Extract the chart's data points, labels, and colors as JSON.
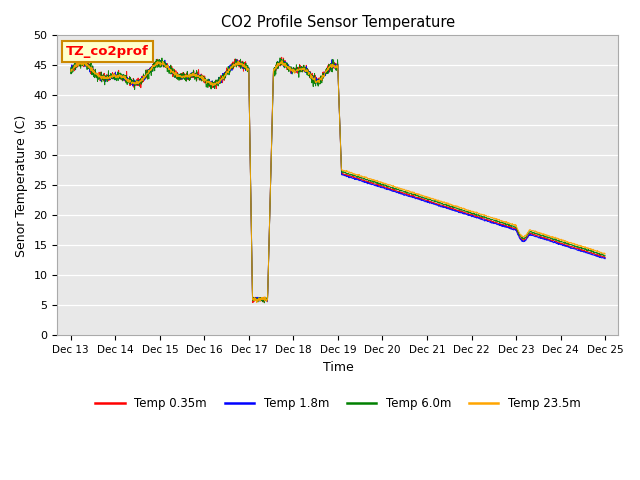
{
  "title": "CO2 Profile Sensor Temperature",
  "ylabel": "Senor Temperature (C)",
  "xlabel": "Time",
  "ylim": [
    0,
    50
  ],
  "yticks": [
    0,
    5,
    10,
    15,
    20,
    25,
    30,
    35,
    40,
    45,
    50
  ],
  "annotation_text": "TZ_co2prof",
  "annotation_box_color": "#ffffcc",
  "annotation_box_edge": "#cc8800",
  "bg_color": "#e8e8e8",
  "series_colors": [
    "red",
    "blue",
    "green",
    "orange"
  ],
  "series_labels": [
    "Temp 0.35m",
    "Temp 1.8m",
    "Temp 6.0m",
    "Temp 23.5m"
  ],
  "xtick_labels": [
    "Dec 13",
    "Dec 14",
    "Dec 15",
    "Dec 16",
    "Dec 17",
    "Dec 18",
    "Dec 19",
    "Dec 20",
    "Dec 21",
    "Dec 22",
    "Dec 23",
    "Dec 24",
    "Dec 25"
  ],
  "figsize": [
    6.4,
    4.8
  ],
  "dpi": 100
}
